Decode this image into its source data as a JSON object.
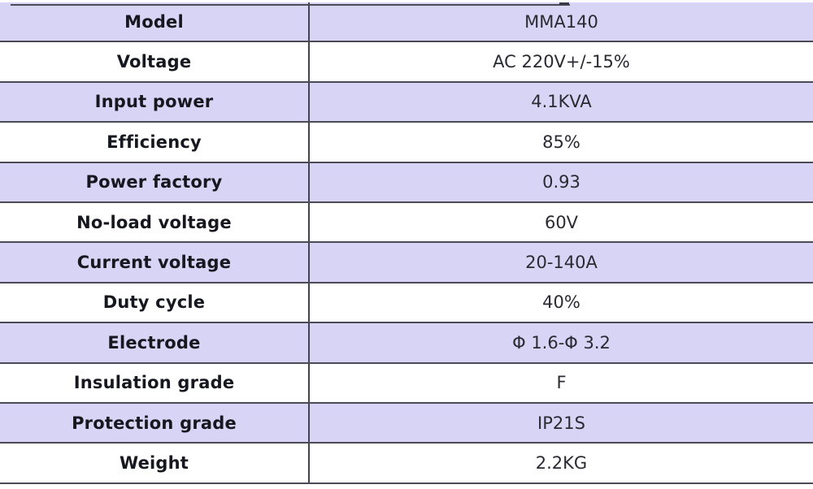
{
  "table": {
    "rows": [
      {
        "label": "Model",
        "value": "MMA140"
      },
      {
        "label": "Voltage",
        "value": "AC 220V+/-15%"
      },
      {
        "label": "Input power",
        "value": "4.1KVA"
      },
      {
        "label": "Efficiency",
        "value": "85%"
      },
      {
        "label": "Power factory",
        "value": "0.93"
      },
      {
        "label": "No-load voltage",
        "value": "60V"
      },
      {
        "label": "Current voltage",
        "value": "20-140A"
      },
      {
        "label": "Duty cycle",
        "value": "40%"
      },
      {
        "label": "Electrode",
        "value": "Φ 1.6-Φ 3.2"
      },
      {
        "label": "Insulation grade",
        "value": "F"
      },
      {
        "label": "Protection grade",
        "value": "IP21S"
      },
      {
        "label": "Weight",
        "value": "2.2KG"
      }
    ],
    "colors": {
      "row_alt_fill": "#d7d4f5",
      "row_base_fill": "#ffffff",
      "border": "#4b4b57",
      "label_text": "#17171f",
      "value_text": "#2a2a33"
    }
  }
}
